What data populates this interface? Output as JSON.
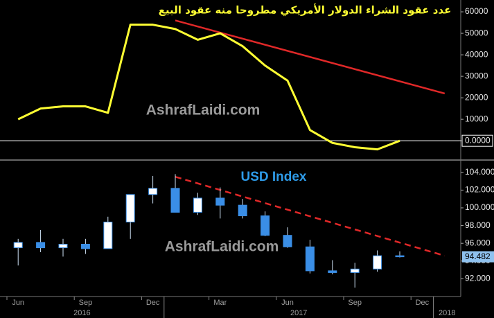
{
  "chart_data": [
    {
      "type": "line",
      "title": "عدد عقود الشراء الدولار الأمريكي مطروحا منه عقود البيع",
      "watermark": "AshrafLaidi.com",
      "x": [
        "2016-06",
        "2016-07",
        "2016-08",
        "2016-09",
        "2016-10",
        "2016-11",
        "2016-12",
        "2017-01",
        "2017-02",
        "2017-03",
        "2017-04",
        "2017-05",
        "2017-06",
        "2017-07",
        "2017-08",
        "2017-09",
        "2017-10",
        "2017-11"
      ],
      "series": [
        {
          "color": "#ffff33",
          "values": [
            10000,
            15000,
            16000,
            16000,
            13000,
            54000,
            54000,
            52000,
            47000,
            50000,
            44000,
            35000,
            28000,
            5000,
            -1000,
            -3000,
            -4000,
            0
          ]
        }
      ],
      "trendline": {
        "x": [
          "2017-01",
          "2018-01"
        ],
        "values": [
          56000,
          22000
        ],
        "color": "#e02828"
      },
      "xlim": [
        "2016-06",
        "2018-01"
      ],
      "ylim": [
        -8000,
        65500
      ],
      "yticks": [
        {
          "value": 0,
          "label": "0.0000"
        },
        10000,
        20000,
        30000,
        40000,
        50000,
        60000
      ]
    },
    {
      "type": "candlestick",
      "subtitle": "USD Index",
      "watermark": "AshrafLaidi.com",
      "x": [
        "2016-06",
        "2016-07",
        "2016-08",
        "2016-09",
        "2016-10",
        "2016-11",
        "2016-12",
        "2017-01",
        "2017-02",
        "2017-03",
        "2017-04",
        "2017-05",
        "2017-06",
        "2017-07",
        "2017-08",
        "2017-09",
        "2017-10",
        "2017-11"
      ],
      "open": [
        95.5,
        96.1,
        95.5,
        95.9,
        95.4,
        98.4,
        101.5,
        102.2,
        99.5,
        101.1,
        100.3,
        99.1,
        96.9,
        95.6,
        92.9,
        92.7,
        93.1,
        94.6
      ],
      "high": [
        96.5,
        97.5,
        96.5,
        96.5,
        99.0,
        101.5,
        103.6,
        103.8,
        101.7,
        102.3,
        101.0,
        99.6,
        97.8,
        96.4,
        94.1,
        93.8,
        95.2,
        95.1
      ],
      "low": [
        93.5,
        95.0,
        94.5,
        94.8,
        95.4,
        96.5,
        100.5,
        99.5,
        99.2,
        98.8,
        98.8,
        96.8,
        95.5,
        92.6,
        92.5,
        91.0,
        92.8,
        94.4
      ],
      "close": [
        96.1,
        95.5,
        95.9,
        95.4,
        98.4,
        101.5,
        102.2,
        99.5,
        101.1,
        100.3,
        99.1,
        96.9,
        95.6,
        92.9,
        92.7,
        93.1,
        94.6,
        94.482
      ],
      "up_color": "#ffffff",
      "down_color": "#3a8ee6",
      "trendline": {
        "x": [
          "2017-01",
          "2018-01"
        ],
        "values": [
          103.5,
          94.6
        ],
        "color": "#e02828",
        "dashed": true
      },
      "xlim": [
        "2016-06",
        "2018-01"
      ],
      "ylim": [
        90,
        105
      ],
      "yticks": [
        {
          "value": 92,
          "label": "92.000"
        },
        {
          "value": 94,
          "label": "94.000"
        },
        {
          "value": 96,
          "label": "96.000"
        },
        {
          "value": 98,
          "label": "98.000"
        },
        {
          "value": 100,
          "label": "100.000"
        },
        {
          "value": 102,
          "label": "102.000"
        },
        {
          "value": 104,
          "label": "104.000"
        }
      ],
      "xticks": [
        {
          "value": "2016-06",
          "label": "Jun"
        },
        {
          "value": "2016-09",
          "label": "Sep"
        },
        {
          "value": "2016-12",
          "label": "Dec"
        },
        {
          "value": "2017-03",
          "label": "Mar"
        },
        {
          "value": "2017-06",
          "label": "Jun"
        },
        {
          "value": "2017-09",
          "label": "Sep"
        },
        {
          "value": "2017-12",
          "label": "Dec"
        }
      ],
      "year_ticks": [
        2016,
        2017,
        2018
      ]
    }
  ]
}
